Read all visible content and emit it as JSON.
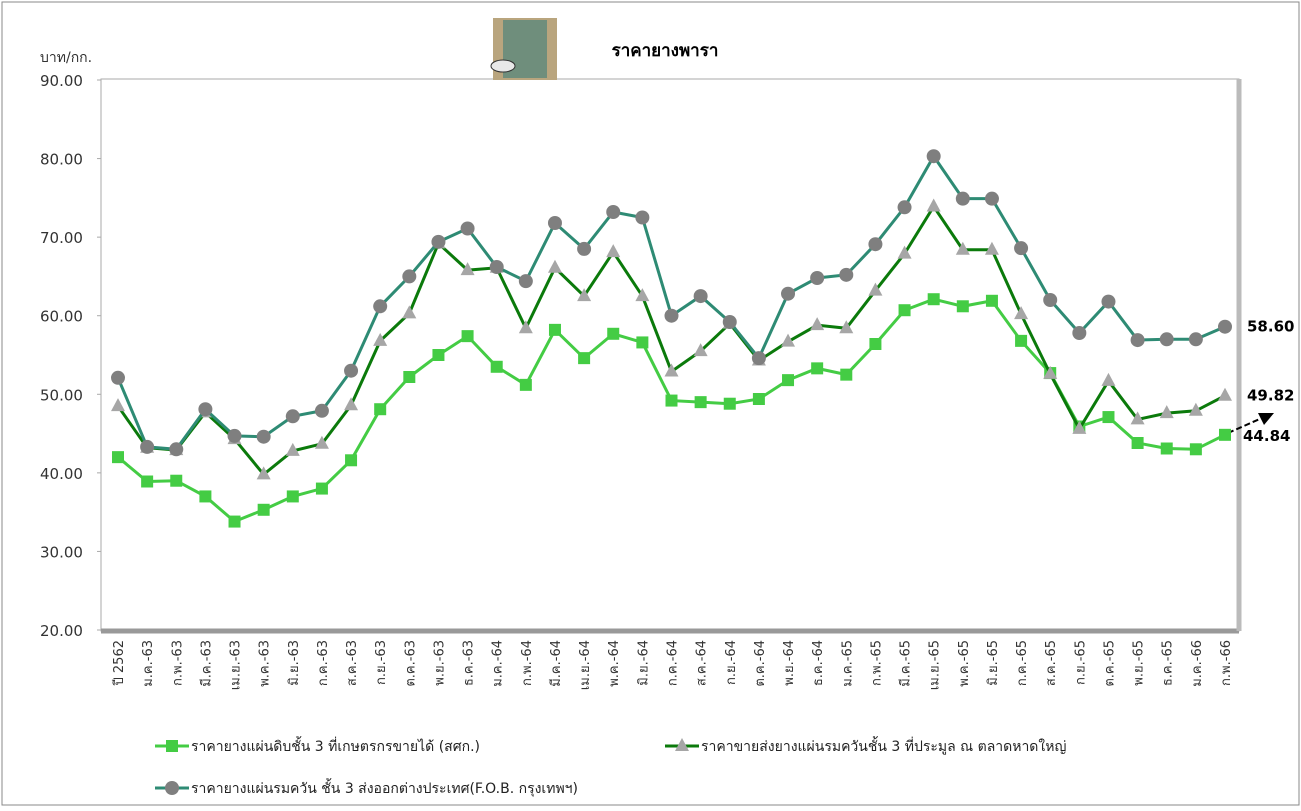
{
  "chart_data": {
    "type": "line",
    "title": "ราคายางพารา",
    "y_label": "บาท/กก.",
    "categories": [
      "ปี 2562",
      "ม.ค.-63",
      "ก.พ.-63",
      "มี.ค.-63",
      "เม.ย.-63",
      "พ.ค.-63",
      "มิ.ย.-63",
      "ก.ค.-63",
      "ส.ค.-63",
      "ก.ย.-63",
      "ต.ค.-63",
      "พ.ย.-63",
      "ธ.ค.-63",
      "ม.ค.-64",
      "ก.พ.-64",
      "มี.ค.-64",
      "เม.ย.-64",
      "พ.ค.-64",
      "มิ.ย.-64",
      "ก.ค.-64",
      "ส.ค.-64",
      "ก.ย.-64",
      "ต.ค.-64",
      "พ.ย.-64",
      "ธ.ค.-64",
      "ม.ค.-65",
      "ก.พ.-65",
      "มี.ค.-65",
      "เม.ย.-65",
      "พ.ค.-65",
      "มิ.ย.-65",
      "ก.ค.-65",
      "ส.ค.-65",
      "ก.ย.-65",
      "ต.ค.-65",
      "พ.ย.-65",
      "ธ.ค.-65",
      "ม.ค.-66",
      "ก.พ.-66"
    ],
    "series": [
      {
        "name": "ราคายางแผ่นดิบชั้น 3 ที่เกษตรกรขายได้ (สศก.)",
        "color": "#44cc44",
        "marker": "square",
        "values": [
          42.0,
          38.9,
          39.0,
          37.0,
          33.8,
          35.3,
          37.0,
          38.0,
          41.6,
          48.1,
          52.2,
          55.0,
          57.4,
          53.5,
          51.2,
          58.2,
          54.6,
          57.7,
          56.6,
          49.2,
          49.0,
          48.8,
          49.4,
          51.8,
          53.3,
          52.5,
          56.4,
          60.7,
          62.1,
          61.2,
          61.9,
          56.8,
          52.7,
          45.9,
          47.1,
          43.8,
          43.1,
          43.0,
          44.84
        ],
        "value_labels": [
          null,
          null,
          null,
          null,
          null,
          null,
          null,
          null,
          null,
          null,
          null,
          null,
          null,
          null,
          null,
          null,
          null,
          null,
          null,
          null,
          null,
          null,
          null,
          null,
          null,
          null,
          null,
          null,
          null,
          null,
          null,
          null,
          null,
          null,
          null,
          null,
          null,
          null,
          "44.84"
        ]
      },
      {
        "name": "ราคาขายส่งยางแผ่นรมควันชั้น 3 ที่ประมูล ณ ตลาดหาดใหญ่",
        "color": "#0b7a0b",
        "marker_color": "#a6a6a6",
        "marker": "triangle",
        "values": [
          48.5,
          43.2,
          42.9,
          47.7,
          44.3,
          39.8,
          42.8,
          43.7,
          48.6,
          56.8,
          60.3,
          69.2,
          65.8,
          66.1,
          58.4,
          66.1,
          62.5,
          68.1,
          62.5,
          52.9,
          55.5,
          59.0,
          54.3,
          56.7,
          58.8,
          58.4,
          63.2,
          67.9,
          73.9,
          68.4,
          68.4,
          60.2,
          52.6,
          45.6,
          51.7,
          46.8,
          47.6,
          47.9,
          49.82
        ],
        "value_labels": [
          null,
          null,
          null,
          null,
          null,
          null,
          null,
          null,
          null,
          null,
          null,
          null,
          null,
          null,
          null,
          null,
          null,
          null,
          null,
          null,
          null,
          null,
          null,
          null,
          null,
          null,
          null,
          null,
          null,
          null,
          null,
          null,
          null,
          null,
          null,
          null,
          null,
          null,
          "49.82"
        ]
      },
      {
        "name": "ราคายางแผ่นรมควัน ชั้น 3 ส่งออกต่างประเทศ(F.O.B. กรุงเทพฯ)",
        "color": "#2e8b74",
        "marker_color": "#7f7f7f",
        "marker": "circle",
        "values": [
          52.1,
          43.3,
          43.0,
          48.1,
          44.7,
          44.6,
          47.2,
          47.9,
          53.0,
          61.2,
          65.0,
          69.4,
          71.1,
          66.2,
          64.4,
          71.8,
          68.5,
          73.2,
          72.5,
          60.0,
          62.5,
          59.2,
          54.6,
          62.8,
          64.8,
          65.2,
          69.1,
          73.8,
          80.3,
          74.9,
          74.9,
          68.6,
          62.0,
          57.8,
          61.8,
          56.9,
          57.0,
          57.0,
          58.6
        ],
        "value_labels": [
          null,
          null,
          null,
          null,
          null,
          null,
          null,
          null,
          null,
          null,
          null,
          null,
          null,
          null,
          null,
          null,
          null,
          null,
          null,
          null,
          null,
          null,
          null,
          null,
          null,
          null,
          null,
          null,
          null,
          null,
          null,
          null,
          null,
          null,
          null,
          null,
          null,
          null,
          "58.60"
        ]
      }
    ],
    "ylim": [
      20,
      90
    ],
    "yticks": [
      {
        "value": 20,
        "label": "20.00"
      },
      {
        "value": 30,
        "label": "30.00"
      },
      {
        "value": 40,
        "label": "40.00"
      },
      {
        "value": 50,
        "label": "50.00"
      },
      {
        "value": 60,
        "label": "60.00"
      },
      {
        "value": 70,
        "label": "70.00"
      },
      {
        "value": 80,
        "label": "80.00"
      },
      {
        "value": 90,
        "label": "90.00"
      }
    ],
    "grid": false,
    "legend": "bottom"
  }
}
